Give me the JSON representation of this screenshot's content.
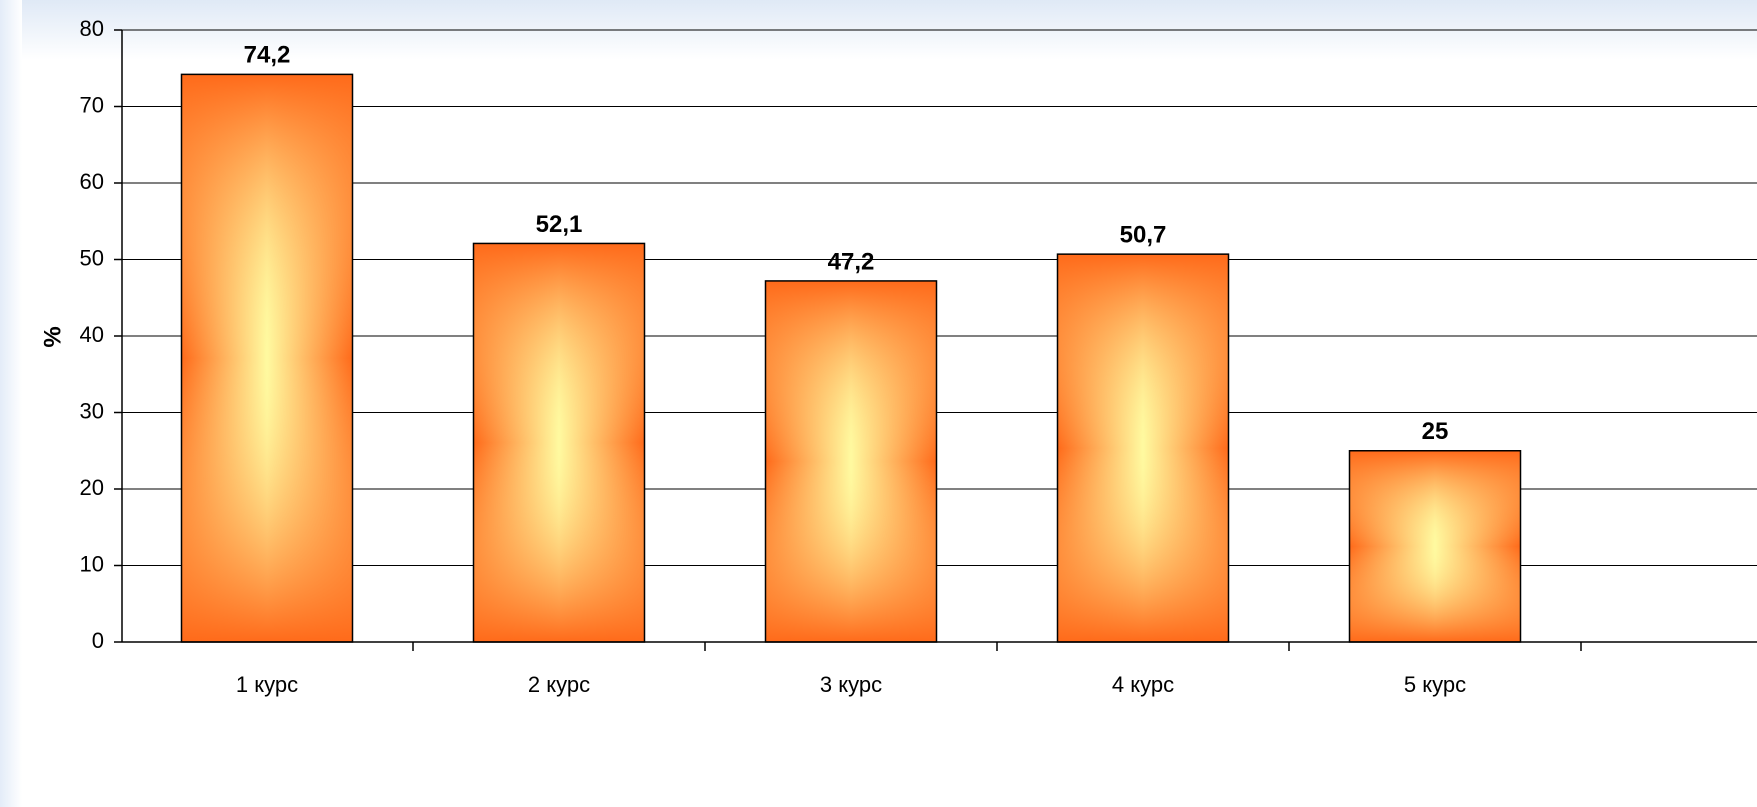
{
  "chart_data": {
    "type": "bar",
    "categories": [
      "1 курс",
      "2 курс",
      "3 курс",
      "4 курс",
      "5 курс"
    ],
    "values": [
      74.2,
      52.1,
      47.2,
      50.7,
      25
    ],
    "value_labels": [
      "74,2",
      "52,1",
      "47,2",
      "50,7",
      "25"
    ],
    "title": "",
    "xlabel": "",
    "ylabel": "%",
    "ylim": [
      0,
      80
    ],
    "yticks": [
      0,
      10,
      20,
      30,
      40,
      50,
      60,
      70,
      80
    ],
    "grid": true,
    "legend": "none",
    "colors": {
      "bar_edge": "#ff6a1a",
      "bar_center": "#fffaa0",
      "gridline": "#000000",
      "axis": "#000000"
    }
  }
}
